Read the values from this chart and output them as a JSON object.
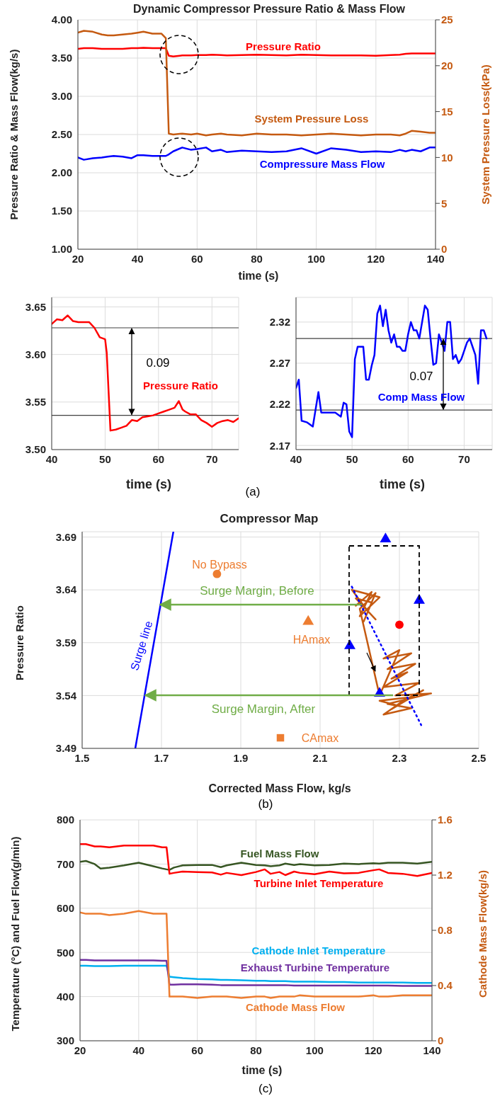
{
  "chart_data": [
    {
      "type": "line",
      "title": "Dynamic Compressor Pressure Ratio & Mass Flow",
      "xlabel": "time (s)",
      "ylabel": "Pressure Ratio & Mass Flow(kg/s)",
      "y2label": "System Pressure Loss(kPa)",
      "grid": true,
      "x": [
        20,
        22,
        25,
        28,
        30,
        32,
        35,
        38,
        40,
        42,
        45,
        48,
        49.5,
        50.5,
        52,
        55,
        58,
        60,
        63,
        65,
        68,
        70,
        75,
        80,
        85,
        90,
        95,
        100,
        105,
        110,
        115,
        120,
        125,
        128,
        130,
        132,
        135,
        138,
        140
      ],
      "series": [
        {
          "name": "Pressure Ratio",
          "color": "#ff0000",
          "values": [
            3.62,
            3.63,
            3.63,
            3.62,
            3.62,
            3.62,
            3.62,
            3.63,
            3.63,
            3.635,
            3.63,
            3.63,
            3.63,
            3.53,
            3.52,
            3.535,
            3.535,
            3.54,
            3.54,
            3.545,
            3.54,
            3.535,
            3.54,
            3.545,
            3.54,
            3.535,
            3.545,
            3.54,
            3.535,
            3.535,
            3.535,
            3.53,
            3.54,
            3.545,
            3.555,
            3.56,
            3.56,
            3.56,
            3.56
          ]
        },
        {
          "name": "Compressure Mass Flow",
          "color": "#0000ff",
          "values": [
            2.2,
            2.17,
            2.19,
            2.2,
            2.21,
            2.22,
            2.21,
            2.19,
            2.23,
            2.23,
            2.22,
            2.22,
            2.22,
            2.24,
            2.28,
            2.33,
            2.3,
            2.31,
            2.33,
            2.28,
            2.3,
            2.27,
            2.29,
            2.28,
            2.27,
            2.28,
            2.32,
            2.25,
            2.32,
            2.3,
            2.27,
            2.28,
            2.27,
            2.3,
            2.28,
            2.3,
            2.28,
            2.33,
            2.33
          ]
        },
        {
          "name": "System Pressure Loss",
          "color": "#c55a11",
          "axis": "y2",
          "values": [
            23.6,
            23.8,
            23.7,
            23.4,
            23.3,
            23.3,
            23.4,
            23.5,
            23.6,
            23.7,
            23.5,
            23.5,
            23.0,
            12.6,
            12.5,
            12.6,
            12.5,
            12.6,
            12.4,
            12.5,
            12.6,
            12.5,
            12.4,
            12.6,
            12.5,
            12.5,
            12.4,
            12.5,
            12.6,
            12.5,
            12.4,
            12.5,
            12.5,
            12.4,
            12.6,
            12.9,
            12.8,
            12.7,
            12.7
          ]
        }
      ],
      "xlim": [
        20,
        140
      ],
      "xticks": [
        20,
        40,
        60,
        80,
        100,
        120,
        140
      ],
      "ylim": [
        1,
        4
      ],
      "yticks": [
        {
          "value": 1,
          "label": "1.00"
        },
        {
          "value": 1.5,
          "label": "1.50"
        },
        {
          "value": 2,
          "label": "2.00"
        },
        {
          "value": 2.5,
          "label": "2.50"
        },
        {
          "value": 3,
          "label": "3.00"
        },
        {
          "value": 3.5,
          "label": "3.50"
        },
        {
          "value": 4,
          "label": "4.00"
        }
      ],
      "y2lim": [
        0,
        25
      ],
      "y2ticks": [
        0,
        5,
        10,
        15,
        20,
        25
      ]
    },
    {
      "type": "line",
      "xlabel": "time (s)",
      "grid": true,
      "x": [
        40,
        41,
        42,
        43,
        44,
        45,
        46,
        47,
        48,
        49,
        50,
        50.3,
        51,
        52,
        53,
        54,
        55,
        56,
        57,
        58,
        59,
        60,
        61,
        62,
        63,
        63.8,
        64.5,
        65,
        66,
        67,
        68,
        69,
        70,
        71,
        72,
        73,
        74,
        75
      ],
      "series": [
        {
          "name": "Pressure Ratio",
          "color": "#ff0000",
          "values": [
            3.632,
            3.637,
            3.636,
            3.641,
            3.635,
            3.634,
            3.634,
            3.634,
            3.628,
            3.618,
            3.616,
            3.602,
            3.52,
            3.521,
            3.523,
            3.525,
            3.531,
            3.53,
            3.534,
            3.535,
            3.536,
            3.538,
            3.54,
            3.542,
            3.544,
            3.551,
            3.542,
            3.54,
            3.537,
            3.537,
            3.531,
            3.528,
            3.524,
            3.528,
            3.53,
            3.531,
            3.529,
            3.533
          ]
        }
      ],
      "ref_lines": [
        {
          "axis": "y",
          "value": 3.628,
          "color": "#404040"
        },
        {
          "axis": "y",
          "value": 3.536,
          "color": "#404040"
        }
      ],
      "annotations": [
        "0.09",
        "(a)"
      ],
      "xlim": [
        40,
        75
      ],
      "xticks": [
        40,
        50,
        60,
        70
      ],
      "ylim": [
        3.5,
        3.66
      ],
      "yticks": [
        {
          "value": 3.5,
          "label": "3.50"
        },
        3.55,
        {
          "value": 3.6,
          "label": "3.60"
        },
        3.65
      ]
    },
    {
      "type": "line",
      "xlabel": "time (s)",
      "grid": true,
      "x": [
        40,
        40.5,
        41,
        42,
        43,
        44,
        44.5,
        46,
        47,
        48,
        48.5,
        49,
        49.5,
        50,
        50.5,
        51,
        52,
        52.5,
        53,
        53.5,
        54,
        54.5,
        55,
        55.5,
        56,
        56.5,
        57,
        57.5,
        58,
        58.5,
        59,
        59.5,
        60,
        60.5,
        61,
        61.5,
        62,
        62.5,
        63,
        63.5,
        64,
        64.5,
        65,
        65.5,
        66,
        66.5,
        67,
        67.5,
        68,
        68.5,
        69,
        69.5,
        70,
        70.5,
        71,
        71.5,
        72,
        72.5,
        73,
        73.5,
        74
      ],
      "series": [
        {
          "name": "Comp Mass Flow",
          "color": "#0000ff",
          "values": [
            2.24,
            2.25,
            2.2,
            2.198,
            2.193,
            2.235,
            2.21,
            2.21,
            2.21,
            2.205,
            2.222,
            2.22,
            2.187,
            2.18,
            2.275,
            2.29,
            2.29,
            2.25,
            2.25,
            2.267,
            2.28,
            2.33,
            2.34,
            2.315,
            2.335,
            2.31,
            2.295,
            2.305,
            2.29,
            2.29,
            2.285,
            2.285,
            2.305,
            2.32,
            2.31,
            2.31,
            2.3,
            2.32,
            2.34,
            2.335,
            2.3,
            2.268,
            2.27,
            2.305,
            2.295,
            2.285,
            2.32,
            2.32,
            2.275,
            2.28,
            2.27,
            2.275,
            2.285,
            2.295,
            2.3,
            2.29,
            2.28,
            2.245,
            2.31,
            2.31,
            2.3
          ]
        }
      ],
      "ref_lines": [
        {
          "axis": "y",
          "value": 2.3,
          "color": "#404040"
        },
        {
          "axis": "y",
          "value": 2.213,
          "color": "#404040"
        }
      ],
      "annotations": [
        "0.07"
      ],
      "xlim": [
        40,
        75
      ],
      "xticks": [
        40,
        50,
        60,
        70
      ],
      "ylim": [
        2.165,
        2.35
      ],
      "yticks": [
        2.17,
        2.22,
        2.27,
        2.32
      ]
    },
    {
      "type": "scatter",
      "title": "Compressor Map",
      "xlabel": "Corrected Mass Flow, kg/s",
      "ylabel": "Pressure Ratio",
      "grid": true,
      "series": [
        {
          "name": "Surge line",
          "type": "line",
          "color": "#0000ff",
          "x": [
            1.634,
            1.73
          ],
          "values": [
            3.49,
            3.695
          ]
        },
        {
          "type": "line",
          "color": "#c55a11",
          "x": [
            2.19,
            2.23,
            2.2,
            2.25,
            2.18,
            2.22,
            2.24,
            2.19,
            2.23,
            2.21,
            2.24,
            2.2,
            2.25,
            2.3,
            2.26,
            2.33,
            2.27,
            2.34,
            2.28,
            2.32,
            2.26,
            2.35,
            2.29,
            2.38,
            2.27,
            2.33,
            2.26,
            2.31,
            2.36,
            2.28,
            2.32,
            2.25,
            2.3
          ],
          "values": [
            3.625,
            3.638,
            3.615,
            3.633,
            3.64,
            3.62,
            3.612,
            3.632,
            3.628,
            3.61,
            3.637,
            3.622,
            3.54,
            3.583,
            3.575,
            3.58,
            3.565,
            3.57,
            3.556,
            3.562,
            3.548,
            3.552,
            3.54,
            3.542,
            3.532,
            3.528,
            3.522,
            3.535,
            3.545,
            3.527,
            3.538,
            3.535,
            3.53
          ]
        },
        {
          "type": "line",
          "line_style": "dotted",
          "color": "#0000ff",
          "x": [
            2.18,
            2.355
          ],
          "values": [
            3.643,
            3.512
          ]
        },
        {
          "name": "No Bypass",
          "marker": "circle",
          "color": "#ed7d31",
          "x": [
            1.84
          ],
          "values": [
            3.655
          ]
        },
        {
          "name": "HAmax",
          "marker": "triangle",
          "color": "#ed7d31",
          "x": [
            2.07
          ],
          "values": [
            3.61
          ]
        },
        {
          "name": "CAmax",
          "marker": "square",
          "color": "#ed7d31",
          "x": [
            2.0
          ],
          "values": [
            3.5
          ]
        },
        {
          "marker": "circle",
          "color": "#ff0000",
          "x": [
            2.3
          ],
          "values": [
            3.607
          ]
        },
        {
          "marker": "triangle",
          "color": "#0000ff",
          "x": [
            2.265,
            2.35,
            2.175,
            2.25
          ],
          "values": [
            3.688,
            3.63,
            3.587,
            3.542
          ]
        }
      ],
      "annotations": [
        "Surge Margin, Before",
        "Surge Margin, After",
        "(b)"
      ],
      "xlim": [
        1.5,
        2.5
      ],
      "xticks": [
        1.5,
        1.7,
        1.9,
        2.1,
        2.3,
        2.5
      ],
      "ylim": [
        3.49,
        3.695
      ],
      "yticks": [
        3.49,
        3.54,
        3.59,
        3.64,
        3.69
      ]
    },
    {
      "type": "line",
      "xlabel": "time (s)",
      "ylabel": "Temperature (°C) and Fuel Flow(g/min)",
      "y2label": "Cathode Mass Flow(kg/s)",
      "grid": true,
      "x": [
        20,
        22,
        25,
        27,
        30,
        35,
        40,
        45,
        48,
        49.5,
        50.5,
        52,
        55,
        60,
        65,
        68,
        70,
        75,
        80,
        83,
        85,
        88,
        90,
        93,
        95,
        100,
        105,
        110,
        115,
        120,
        122,
        125,
        130,
        135,
        140
      ],
      "series": [
        {
          "name": "Fuel Mass Flow",
          "color": "#375623",
          "values": [
            705,
            707,
            700,
            690,
            692,
            697,
            703,
            695,
            690,
            688,
            687,
            692,
            697,
            698,
            698,
            693,
            697,
            703,
            698,
            697,
            695,
            697,
            701,
            698,
            700,
            697,
            698,
            701,
            700,
            702,
            701,
            703,
            703,
            701,
            705
          ]
        },
        {
          "name": "Turbine Inlet Temperature",
          "color": "#ff0000",
          "values": [
            745,
            745,
            740,
            740,
            738,
            742,
            742,
            742,
            738,
            738,
            678,
            680,
            683,
            682,
            681,
            676,
            680,
            675,
            682,
            688,
            678,
            682,
            675,
            683,
            680,
            677,
            683,
            679,
            680,
            686,
            688,
            680,
            678,
            673,
            680
          ]
        },
        {
          "name": "Cathode Inlet Temperature",
          "color": "#00b0f0",
          "values": [
            470,
            470,
            469,
            469,
            469,
            470,
            470,
            470,
            470,
            470,
            445,
            444,
            442,
            440,
            439,
            438,
            438,
            437,
            436,
            436,
            435,
            435,
            435,
            434,
            434,
            434,
            433,
            433,
            432,
            432,
            432,
            432,
            432,
            431,
            431
          ]
        },
        {
          "name": "Exhaust Turbine Temperature",
          "color": "#7030a0",
          "values": [
            483,
            483,
            482,
            482,
            482,
            482,
            482,
            482,
            481,
            481,
            427,
            427,
            428,
            428,
            427,
            426,
            426,
            426,
            426,
            426,
            426,
            426,
            426,
            425,
            425,
            425,
            425,
            425,
            425,
            425,
            425,
            425,
            424,
            424,
            424
          ]
        },
        {
          "name": "Cathode Mass Flow",
          "color": "#ed7d31",
          "axis": "y2",
          "values": [
            0.93,
            0.92,
            0.92,
            0.92,
            0.91,
            0.92,
            0.94,
            0.92,
            0.92,
            0.92,
            0.32,
            0.32,
            0.32,
            0.31,
            0.32,
            0.32,
            0.32,
            0.31,
            0.32,
            0.32,
            0.31,
            0.32,
            0.32,
            0.32,
            0.33,
            0.32,
            0.32,
            0.32,
            0.32,
            0.33,
            0.32,
            0.32,
            0.33,
            0.33,
            0.33
          ]
        }
      ],
      "annotations": [
        "(c)"
      ],
      "xlim": [
        20,
        140
      ],
      "xticks": [
        20,
        40,
        60,
        80,
        100,
        120,
        140
      ],
      "ylim": [
        300,
        800
      ],
      "yticks": [
        300,
        400,
        500,
        600,
        700,
        800
      ],
      "y2lim": [
        0,
        1.6
      ],
      "y2ticks": [
        0,
        0.4,
        0.8,
        1.2,
        1.6
      ]
    }
  ]
}
